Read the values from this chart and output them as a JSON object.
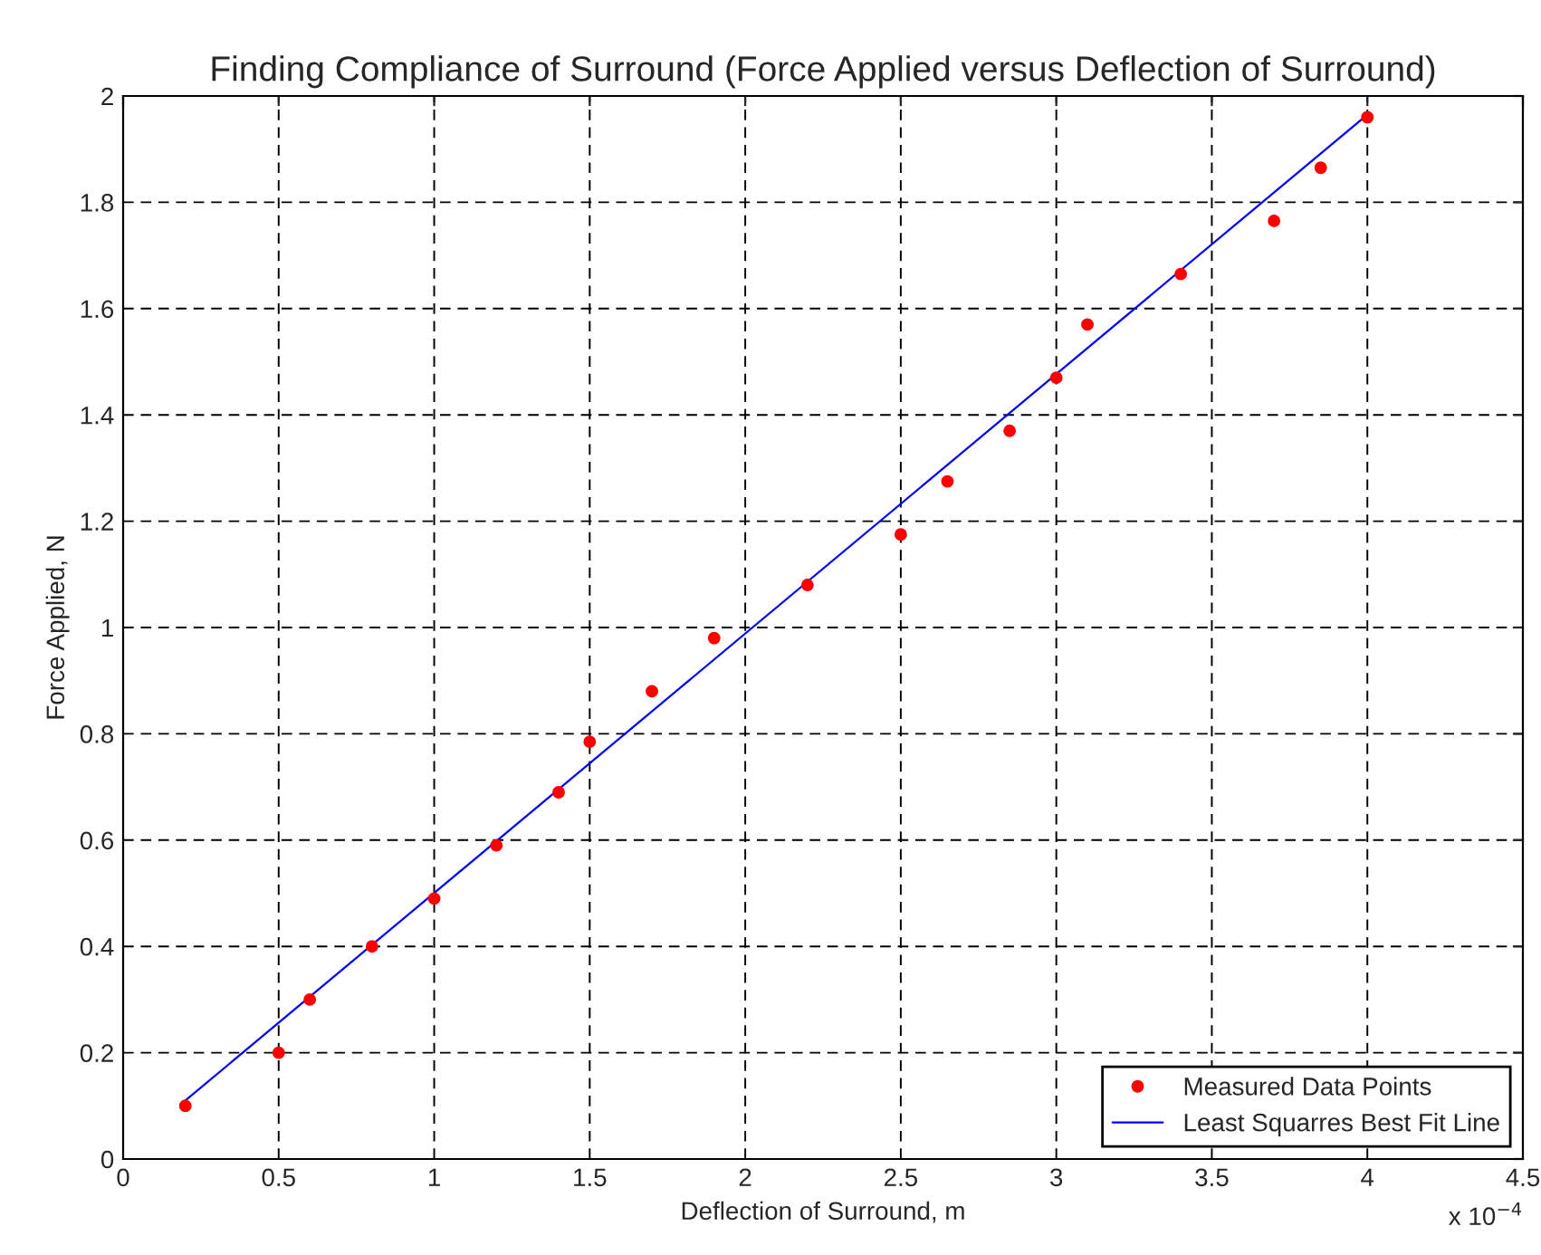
{
  "chart_data": {
    "type": "scatter",
    "title": "Finding Compliance of Surround (Force Applied versus Deflection of Surround)",
    "xlabel": "Deflection of Surround, m",
    "ylabel": "Force Applied, N",
    "series": [
      {
        "name": "Measured Data Points",
        "color": "#ff0000",
        "marker": "circle",
        "x": [
          0.2,
          0.5,
          0.6,
          0.8,
          1.0,
          1.2,
          1.4,
          1.5,
          1.7,
          1.9,
          2.2,
          2.5,
          2.65,
          2.85,
          3.0,
          3.1,
          3.4,
          3.7,
          3.85,
          4.0
        ],
        "values": [
          0.1,
          0.2,
          0.3,
          0.4,
          0.49,
          0.59,
          0.69,
          0.785,
          0.88,
          0.98,
          1.08,
          1.175,
          1.275,
          1.37,
          1.47,
          1.57,
          1.665,
          1.765,
          1.865,
          1.96
        ]
      },
      {
        "name": "Least Squarres Best Fit Line",
        "type": "line",
        "color": "#0000ff",
        "x": [
          0.2,
          4.0
        ],
        "values": [
          0.11,
          1.965
        ]
      }
    ],
    "xlim": [
      0,
      4.5
    ],
    "xticks": [
      0,
      0.5,
      1,
      1.5,
      2,
      2.5,
      3,
      3.5,
      4,
      4.5
    ],
    "ylim": [
      0,
      2
    ],
    "yticks": [
      0,
      0.2,
      0.4,
      0.6,
      0.8,
      1,
      1.2,
      1.4,
      1.6,
      1.8,
      2
    ],
    "annotations": [
      "x 10$^{−4}$"
    ],
    "grid": true,
    "legend": "bottom right"
  }
}
